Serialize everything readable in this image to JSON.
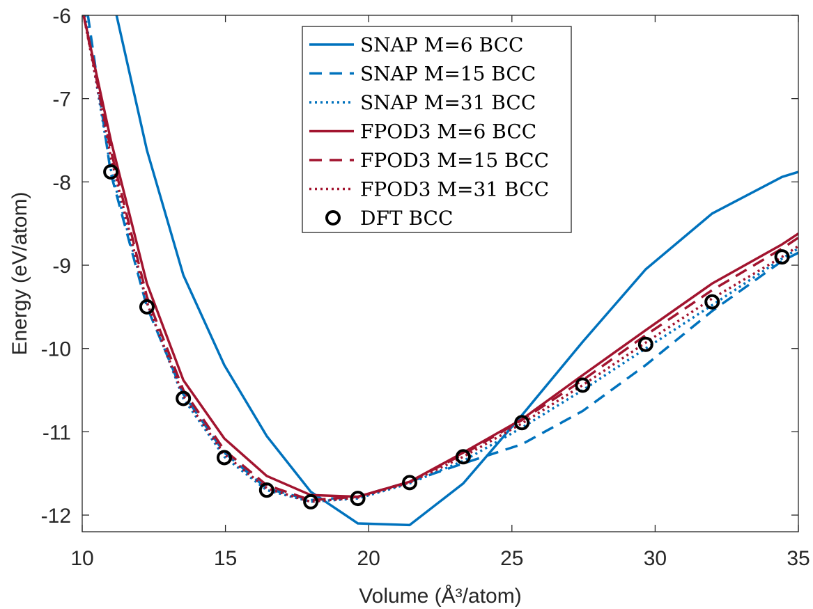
{
  "chart_data": {
    "type": "line",
    "xlabel": "Volume (Å³/atom)",
    "ylabel": "Energy (eV/atom)",
    "xlim": [
      10,
      35
    ],
    "ylim": [
      -12.2,
      -6
    ],
    "xticks": [
      10,
      15,
      20,
      25,
      30,
      35
    ],
    "yticks": [
      -6,
      -7,
      -8,
      -9,
      -10,
      -11,
      -12
    ],
    "grid": false,
    "legend_position": "top-center",
    "colors": {
      "snap": "#0072BD",
      "fpod3": "#A2142F",
      "dft": "#000000"
    },
    "series": [
      {
        "name": "SNAP M=6 BCC",
        "style": "solid",
        "color": "#0072BD",
        "x": [
          11.2,
          12.26,
          13.53,
          14.96,
          16.44,
          17.98,
          19.62,
          21.43,
          23.3,
          25.35,
          27.47,
          29.67,
          31.99,
          34.43,
          35
        ],
        "y": [
          -6.0,
          -7.62,
          -9.12,
          -10.2,
          -11.05,
          -11.72,
          -12.1,
          -12.12,
          -11.62,
          -10.8,
          -9.92,
          -9.05,
          -8.38,
          -7.94,
          -7.88
        ]
      },
      {
        "name": "SNAP M=15 BCC",
        "style": "dashed",
        "color": "#0072BD",
        "x": [
          10.2,
          11.0,
          12.26,
          13.53,
          14.96,
          16.44,
          17.98,
          19.62,
          21.43,
          23.3,
          25.35,
          27.47,
          29.67,
          31.99,
          34.43,
          35
        ],
        "y": [
          -6.0,
          -7.9,
          -9.5,
          -10.55,
          -11.25,
          -11.68,
          -11.82,
          -11.78,
          -11.6,
          -11.38,
          -11.15,
          -10.75,
          -10.2,
          -9.55,
          -8.95,
          -8.85
        ]
      },
      {
        "name": "SNAP M=31 BCC",
        "style": "dotted",
        "color": "#0072BD",
        "x": [
          10.1,
          11.0,
          12.26,
          13.53,
          14.96,
          16.44,
          17.98,
          19.62,
          21.43,
          23.3,
          25.35,
          27.47,
          29.67,
          31.99,
          34.43,
          35
        ],
        "y": [
          -6.0,
          -7.85,
          -9.45,
          -10.6,
          -11.3,
          -11.7,
          -11.84,
          -11.8,
          -11.62,
          -11.35,
          -10.95,
          -10.5,
          -10.0,
          -9.48,
          -8.92,
          -8.8
        ]
      },
      {
        "name": "FPOD3 M=6 BCC",
        "style": "solid",
        "color": "#A2142F",
        "x": [
          10.05,
          11.0,
          12.26,
          13.53,
          14.96,
          16.44,
          17.98,
          19.62,
          21.43,
          23.3,
          25.35,
          27.47,
          29.67,
          31.99,
          34.43,
          35
        ],
        "y": [
          -6.0,
          -7.5,
          -9.22,
          -10.38,
          -11.08,
          -11.53,
          -11.76,
          -11.78,
          -11.6,
          -11.25,
          -10.85,
          -10.32,
          -9.78,
          -9.22,
          -8.75,
          -8.62
        ]
      },
      {
        "name": "FPOD3 M=15 BCC",
        "style": "dashed",
        "color": "#A2142F",
        "x": [
          10.05,
          11.0,
          12.26,
          13.53,
          14.96,
          16.44,
          17.98,
          19.62,
          21.43,
          23.3,
          25.35,
          27.47,
          29.67,
          31.99,
          34.43,
          35
        ],
        "y": [
          -6.0,
          -7.62,
          -9.38,
          -10.5,
          -11.22,
          -11.64,
          -11.82,
          -11.78,
          -11.6,
          -11.27,
          -10.86,
          -10.38,
          -9.84,
          -9.3,
          -8.8,
          -8.67
        ]
      },
      {
        "name": "FPOD3 M=31 BCC",
        "style": "dotted",
        "color": "#A2142F",
        "x": [
          10.05,
          11.0,
          12.26,
          13.53,
          14.96,
          16.44,
          17.98,
          19.62,
          21.43,
          23.3,
          25.35,
          27.47,
          29.67,
          31.99,
          34.43,
          35
        ],
        "y": [
          -6.0,
          -7.7,
          -9.45,
          -10.57,
          -11.27,
          -11.68,
          -11.84,
          -11.79,
          -11.61,
          -11.3,
          -10.9,
          -10.44,
          -9.93,
          -9.4,
          -8.9,
          -8.77
        ]
      },
      {
        "name": "DFT BCC",
        "style": "markers",
        "color": "#000000",
        "x": [
          11.0,
          12.26,
          13.53,
          14.96,
          16.44,
          17.98,
          19.62,
          21.43,
          23.3,
          25.35,
          27.47,
          29.67,
          31.99,
          34.43
        ],
        "y": [
          -7.88,
          -9.5,
          -10.6,
          -11.31,
          -11.7,
          -11.84,
          -11.8,
          -11.61,
          -11.3,
          -10.89,
          -10.44,
          -9.95,
          -9.44,
          -8.9
        ]
      }
    ]
  }
}
